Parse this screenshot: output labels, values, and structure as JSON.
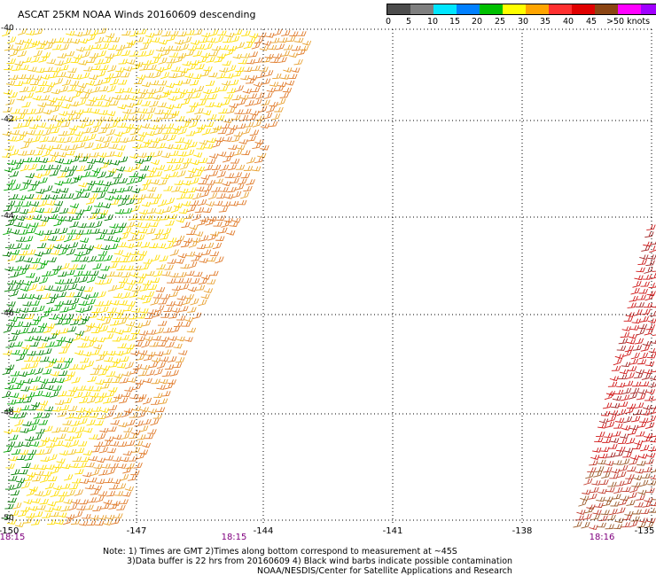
{
  "title": "ASCAT 25KM NOAA Winds 20160609 descending",
  "legend": {
    "labels": [
      "0",
      "5",
      "10",
      "15",
      "20",
      "25",
      "30",
      "35",
      "40",
      "45",
      ">50 knots"
    ],
    "colors": [
      "#4c4c4c",
      "#7f7f7f",
      "#00e6ff",
      "#0080ff",
      "#00c000",
      "#ffff00",
      "#ffa500",
      "#ff3030",
      "#e00000",
      "#8b4513",
      "#ff00ff",
      "#a000ff",
      "#5000b0"
    ]
  },
  "lat_labels": [
    "-40",
    "-42",
    "-44",
    "-46",
    "-48",
    "-50"
  ],
  "lon_labels": [
    "-150",
    "-147",
    "-144",
    "-141",
    "-138",
    "-135"
  ],
  "time_labels": [
    "18:15",
    "18:15",
    "18:16"
  ],
  "notes": {
    "line1": "Note: 1) Times are GMT 2)Times along bottom correspond to measurement at ~45S",
    "line2": "3)Data buffer is 22 hrs from 20160609 4) Black wind barbs indicate possible contamination",
    "line3": "NOAA/NESDIS/Center for Satellite Applications and Research"
  }
}
